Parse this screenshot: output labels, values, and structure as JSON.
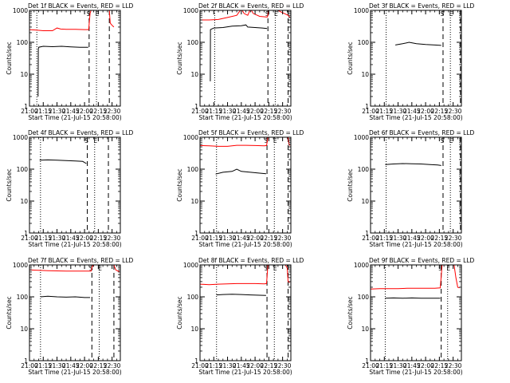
{
  "figure": {
    "ylabel": "Counts/sec",
    "xlabel": "Start Time (21-Jul-15 20:58:00)",
    "x_tick_labels": [
      "21:00",
      "21:15",
      "21:30",
      "21:45",
      "22:00",
      "22:15",
      "22:30"
    ],
    "y_tick_labels": [
      "1",
      "10",
      "100",
      "1000"
    ],
    "colors": {
      "events": "#000000",
      "lld": "#ff0000",
      "axes": "#000000",
      "background": "#ffffff"
    }
  },
  "chart_data": [
    {
      "type": "line",
      "title": "Det 1f BLACK = Events, RED = LLD",
      "xlabel": "Start Time (21-Jul-15 20:58:00)",
      "ylabel": "Counts/sec",
      "x_unit": "minutes after 21:00",
      "xlim": [
        0,
        99
      ],
      "ylim": [
        1,
        1000
      ],
      "yscale": "log",
      "markers": [
        {
          "x": 8,
          "style": "dotted"
        },
        {
          "x": 65,
          "style": "dashed",
          "label": "S"
        },
        {
          "x": 73,
          "style": "dotted",
          "label": "E"
        },
        {
          "x": 87,
          "style": "dashed"
        }
      ],
      "series": [
        {
          "name": "Events",
          "color": "#000000",
          "points": [
            [
              9.4,
              2
            ],
            [
              9.6,
              60
            ],
            [
              10,
              70
            ],
            [
              15,
              75
            ],
            [
              25,
              73
            ],
            [
              35,
              75
            ],
            [
              45,
              72
            ],
            [
              55,
              70
            ],
            [
              64,
              70
            ]
          ]
        },
        {
          "name": "LLD",
          "color": "#ff0000",
          "points": [
            [
              0,
              250
            ],
            [
              8,
              240
            ],
            [
              15,
              230
            ],
            [
              25,
              230
            ],
            [
              30,
              280
            ],
            [
              34,
              260
            ],
            [
              40,
              255
            ],
            [
              50,
              255
            ],
            [
              60,
              250
            ],
            [
              64.5,
              250
            ],
            [
              66,
              800
            ],
            [
              67,
              1000
            ]
          ],
          "tail": [
            [
              87,
              1000
            ],
            [
              88,
              400
            ],
            [
              90,
              340
            ],
            [
              92,
              300
            ]
          ]
        }
      ]
    },
    {
      "type": "line",
      "title": "Det 2f BLACK = Events, RED = LLD",
      "xlabel": "Start Time (21-Jul-15 20:58:00)",
      "ylabel": "Counts/sec",
      "x_unit": "minutes after 21:00",
      "xlim": [
        0,
        99
      ],
      "ylim": [
        1,
        1000
      ],
      "yscale": "log",
      "markers": [
        {
          "x": 16,
          "style": "dotted"
        },
        {
          "x": 74,
          "style": "dashed",
          "label": "S"
        },
        {
          "x": 82,
          "style": "dotted",
          "label": "E"
        },
        {
          "x": 96,
          "style": "dashed"
        }
      ],
      "series": [
        {
          "name": "Events",
          "color": "#000000",
          "points": [
            [
              11.2,
              6
            ],
            [
              11.4,
              250
            ],
            [
              15,
              280
            ],
            [
              25,
              290
            ],
            [
              35,
              320
            ],
            [
              45,
              330
            ],
            [
              50,
              350
            ],
            [
              52,
              300
            ],
            [
              60,
              290
            ],
            [
              68,
              280
            ],
            [
              73,
              270
            ]
          ]
        },
        {
          "name": "LLD",
          "color": "#ff0000",
          "points": [
            [
              0,
              500
            ],
            [
              10,
              500
            ],
            [
              20,
              520
            ],
            [
              30,
              600
            ],
            [
              40,
              700
            ],
            [
              45,
              1100
            ],
            [
              48,
              800
            ],
            [
              52,
              700
            ],
            [
              55,
              1100
            ],
            [
              58,
              800
            ],
            [
              65,
              650
            ],
            [
              72,
              620
            ],
            [
              73.5,
              620
            ],
            [
              75,
              1000
            ]
          ],
          "tail": [
            [
              85,
              1000
            ],
            [
              88,
              900
            ],
            [
              92,
              800
            ],
            [
              96,
              700
            ],
            [
              98,
              600
            ]
          ]
        }
      ]
    },
    {
      "type": "line",
      "title": "Det 3f BLACK = Events, RED = LLD",
      "xlabel": "Start Time (21-Jul-15 20:58:00)",
      "ylabel": "Counts/sec",
      "x_unit": "minutes after 21:00",
      "xlim": [
        0,
        99
      ],
      "ylim": [
        1,
        1000
      ],
      "yscale": "log",
      "markers": [
        {
          "x": 17,
          "style": "dotted"
        },
        {
          "x": 79,
          "style": "dashed",
          "label": "S"
        },
        {
          "x": 87,
          "style": "dotted",
          "label": "E"
        },
        {
          "x": 98,
          "style": "dashed"
        }
      ],
      "series": [
        {
          "name": "Events",
          "color": "#000000",
          "points": [
            [
              27,
              82
            ],
            [
              35,
              90
            ],
            [
              42,
              100
            ],
            [
              50,
              90
            ],
            [
              60,
              85
            ],
            [
              70,
              82
            ],
            [
              77,
              80
            ]
          ]
        }
      ]
    },
    {
      "type": "line",
      "title": "Det 4f BLACK = Events, RED = LLD",
      "xlabel": "Start Time (21-Jul-15 20:58:00)",
      "ylabel": "Counts/sec",
      "x_unit": "minutes after 21:00",
      "xlim": [
        0,
        99
      ],
      "ylim": [
        1,
        1000
      ],
      "yscale": "log",
      "markers": [
        {
          "x": 12,
          "style": "dotted"
        },
        {
          "x": 63,
          "style": "dashed",
          "label": "S"
        },
        {
          "x": 71,
          "style": "dotted",
          "label": "E"
        },
        {
          "x": 86,
          "style": "dashed"
        }
      ],
      "series": [
        {
          "name": "Events",
          "color": "#000000",
          "points": [
            [
              11,
              190
            ],
            [
              20,
              195
            ],
            [
              30,
              190
            ],
            [
              40,
              185
            ],
            [
              50,
              180
            ],
            [
              58,
              175
            ],
            [
              62,
              150
            ]
          ]
        }
      ]
    },
    {
      "type": "line",
      "title": "Det 5f BLACK = Events, RED = LLD",
      "xlabel": "Start Time (21-Jul-15 20:58:00)",
      "ylabel": "Counts/sec",
      "x_unit": "minutes after 21:00",
      "xlim": [
        0,
        99
      ],
      "ylim": [
        1,
        1000
      ],
      "yscale": "log",
      "markers": [
        {
          "x": 18,
          "style": "dotted"
        },
        {
          "x": 73,
          "style": "dashed",
          "label": "S"
        },
        {
          "x": 81,
          "style": "dotted",
          "label": "E"
        },
        {
          "x": 96,
          "style": "dashed"
        }
      ],
      "series": [
        {
          "name": "Events",
          "color": "#000000",
          "points": [
            [
              17,
              70
            ],
            [
              25,
              80
            ],
            [
              35,
              85
            ],
            [
              40,
              100
            ],
            [
              45,
              85
            ],
            [
              55,
              80
            ],
            [
              65,
              75
            ],
            [
              72,
              72
            ]
          ]
        },
        {
          "name": "LLD",
          "color": "#ff0000",
          "points": [
            [
              0,
              550
            ],
            [
              10,
              540
            ],
            [
              20,
              520
            ],
            [
              30,
              520
            ],
            [
              40,
              560
            ],
            [
              50,
              560
            ],
            [
              60,
              550
            ],
            [
              70,
              540
            ],
            [
              72.5,
              550
            ],
            [
              74,
              1000
            ]
          ],
          "tail": [
            [
              96,
              1000
            ],
            [
              97,
              600
            ],
            [
              98,
              550
            ]
          ]
        }
      ]
    },
    {
      "type": "line",
      "title": "Det 6f BLACK = Events, RED = LLD",
      "xlabel": "Start Time (21-Jul-15 20:58:00)",
      "ylabel": "Counts/sec",
      "x_unit": "minutes after 21:00",
      "xlim": [
        0,
        99
      ],
      "ylim": [
        1,
        1000
      ],
      "yscale": "log",
      "markers": [
        {
          "x": 17,
          "style": "dotted"
        },
        {
          "x": 79,
          "style": "dashed",
          "label": "S"
        },
        {
          "x": 87,
          "style": "dotted",
          "label": "E"
        },
        {
          "x": 98,
          "style": "dashed"
        }
      ],
      "series": [
        {
          "name": "Events",
          "color": "#000000",
          "points": [
            [
              16,
              140
            ],
            [
              25,
              145
            ],
            [
              35,
              150
            ],
            [
              45,
              148
            ],
            [
              55,
              145
            ],
            [
              65,
              140
            ],
            [
              73,
              135
            ],
            [
              77,
              130
            ]
          ]
        }
      ]
    },
    {
      "type": "line",
      "title": "Det 7f BLACK = Events, RED = LLD",
      "xlabel": "Start Time (21-Jul-15 20:58:00)",
      "ylabel": "Counts/sec",
      "x_unit": "minutes after 21:00",
      "xlim": [
        0,
        99
      ],
      "ylim": [
        1,
        1000
      ],
      "yscale": "log",
      "markers": [
        {
          "x": 12,
          "style": "dotted"
        },
        {
          "x": 68,
          "style": "dashed",
          "label": "S"
        },
        {
          "x": 76,
          "style": "dotted",
          "label": "E"
        },
        {
          "x": 92,
          "style": "dashed"
        }
      ],
      "series": [
        {
          "name": "Events",
          "color": "#000000",
          "points": [
            [
              12,
              100
            ],
            [
              20,
              105
            ],
            [
              30,
              100
            ],
            [
              40,
              98
            ],
            [
              50,
              100
            ],
            [
              60,
              95
            ],
            [
              66,
              95
            ]
          ]
        },
        {
          "name": "LLD",
          "color": "#ff0000",
          "points": [
            [
              0,
              700
            ],
            [
              10,
              680
            ],
            [
              20,
              660
            ],
            [
              30,
              650
            ],
            [
              40,
              640
            ],
            [
              50,
              640
            ],
            [
              60,
              640
            ],
            [
              67,
              640
            ],
            [
              68.5,
              900
            ],
            [
              70,
              1000
            ]
          ],
          "tail": [
            [
              92,
              1000
            ],
            [
              94,
              700
            ],
            [
              96,
              650
            ],
            [
              98,
              620
            ]
          ]
        }
      ]
    },
    {
      "type": "line",
      "title": "Det 8f BLACK = Events, RED = LLD",
      "xlabel": "Start Time (21-Jul-15 20:58:00)",
      "ylabel": "Counts/sec",
      "x_unit": "minutes after 21:00",
      "xlim": [
        0,
        99
      ],
      "ylim": [
        1,
        1000
      ],
      "yscale": "log",
      "markers": [
        {
          "x": 18,
          "style": "dotted"
        },
        {
          "x": 73,
          "style": "dashed",
          "label": "S"
        },
        {
          "x": 81,
          "style": "dotted",
          "label": "E"
        },
        {
          "x": 96,
          "style": "dashed"
        }
      ],
      "series": [
        {
          "name": "Events",
          "color": "#000000",
          "points": [
            [
              18,
              115
            ],
            [
              25,
              118
            ],
            [
              35,
              120
            ],
            [
              45,
              118
            ],
            [
              55,
              115
            ],
            [
              65,
              112
            ],
            [
              72,
              110
            ]
          ]
        },
        {
          "name": "LLD",
          "color": "#ff0000",
          "points": [
            [
              0,
              250
            ],
            [
              10,
              240
            ],
            [
              20,
              250
            ],
            [
              30,
              255
            ],
            [
              40,
              260
            ],
            [
              50,
              260
            ],
            [
              60,
              260
            ],
            [
              70,
              255
            ],
            [
              72.5,
              260
            ],
            [
              74,
              1000
            ]
          ],
          "tail": [
            [
              93,
              1000
            ],
            [
              95,
              800
            ],
            [
              96,
              300
            ],
            [
              98,
              280
            ]
          ]
        }
      ]
    },
    {
      "type": "line",
      "title": "Det 9f BLACK = Events, RED = LLD",
      "xlabel": "Start Time (21-Jul-15 20:58:00)",
      "ylabel": "Counts/sec",
      "x_unit": "minutes after 21:00",
      "xlim": [
        0,
        99
      ],
      "ylim": [
        1,
        1000
      ],
      "yscale": "log",
      "markers": [
        {
          "x": 16,
          "style": "dotted"
        },
        {
          "x": 77,
          "style": "dashed",
          "label": "S"
        },
        {
          "x": 84,
          "style": "dotted",
          "label": "E"
        }
      ],
      "series": [
        {
          "name": "Events",
          "color": "#000000",
          "points": [
            [
              16,
              90
            ],
            [
              25,
              92
            ],
            [
              35,
              90
            ],
            [
              45,
              92
            ],
            [
              55,
              90
            ],
            [
              65,
              90
            ],
            [
              76,
              90
            ]
          ]
        },
        {
          "name": "LLD",
          "color": "#ff0000",
          "points": [
            [
              0,
              175
            ],
            [
              10,
              180
            ],
            [
              20,
              180
            ],
            [
              30,
              180
            ],
            [
              40,
              185
            ],
            [
              50,
              185
            ],
            [
              60,
              185
            ],
            [
              70,
              185
            ],
            [
              76,
              190
            ],
            [
              78,
              1000
            ]
          ],
          "tail": [
            [
              91,
              1000
            ],
            [
              93,
              400
            ],
            [
              95,
              200
            ],
            [
              97,
              190
            ]
          ]
        }
      ]
    }
  ]
}
